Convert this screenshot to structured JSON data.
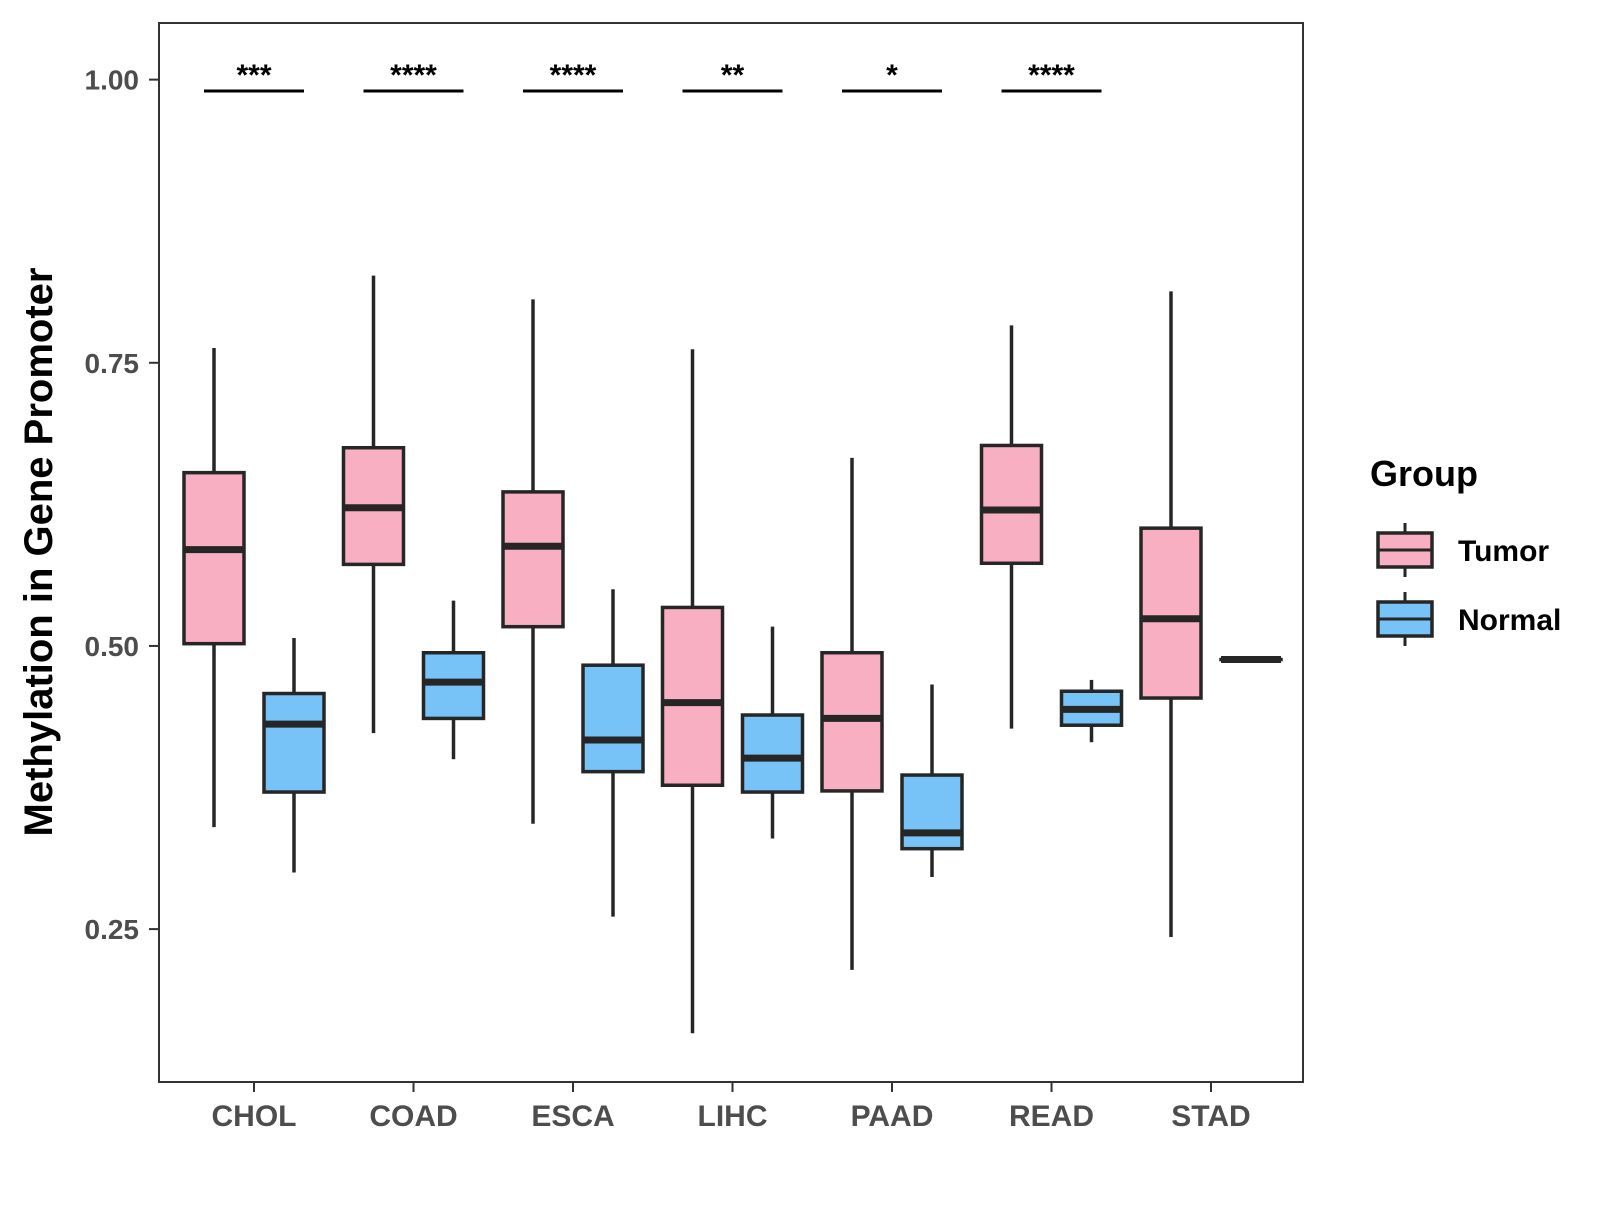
{
  "chart_data": {
    "type": "boxplot",
    "title": "",
    "xlabel": "",
    "ylabel": "Methylation in Gene Promoter",
    "ylim": [
      0.115,
      1.05
    ],
    "yticks": [
      0.25,
      0.5,
      0.75,
      1.0
    ],
    "ytick_labels": [
      "0.25",
      "0.50",
      "0.75",
      "1.00"
    ],
    "categories": [
      "CHOL",
      "COAD",
      "ESCA",
      "LIHC",
      "PAAD",
      "READ",
      "STAD"
    ],
    "series": [
      {
        "name": "Tumor",
        "color": "#F9AFC2",
        "boxes": [
          {
            "min": 0.34,
            "q1": 0.502,
            "median": 0.585,
            "q3": 0.653,
            "max": 0.763
          },
          {
            "min": 0.423,
            "q1": 0.572,
            "median": 0.622,
            "q3": 0.675,
            "max": 0.827
          },
          {
            "min": 0.343,
            "q1": 0.517,
            "median": 0.588,
            "q3": 0.636,
            "max": 0.806
          },
          {
            "min": 0.158,
            "q1": 0.377,
            "median": 0.45,
            "q3": 0.534,
            "max": 0.762
          },
          {
            "min": 0.214,
            "q1": 0.372,
            "median": 0.436,
            "q3": 0.494,
            "max": 0.666
          },
          {
            "min": 0.427,
            "q1": 0.573,
            "median": 0.62,
            "q3": 0.677,
            "max": 0.783
          },
          {
            "min": 0.243,
            "q1": 0.454,
            "median": 0.524,
            "q3": 0.604,
            "max": 0.813
          }
        ]
      },
      {
        "name": "Normal",
        "color": "#77C2F6",
        "boxes": [
          {
            "min": 0.3,
            "q1": 0.371,
            "median": 0.431,
            "q3": 0.458,
            "max": 0.507
          },
          {
            "min": 0.4,
            "q1": 0.436,
            "median": 0.468,
            "q3": 0.494,
            "max": 0.54
          },
          {
            "min": 0.261,
            "q1": 0.389,
            "median": 0.417,
            "q3": 0.483,
            "max": 0.55
          },
          {
            "min": 0.33,
            "q1": 0.371,
            "median": 0.401,
            "q3": 0.439,
            "max": 0.517
          },
          {
            "min": 0.296,
            "q1": 0.321,
            "median": 0.335,
            "q3": 0.386,
            "max": 0.466
          },
          {
            "min": 0.415,
            "q1": 0.43,
            "median": 0.444,
            "q3": 0.46,
            "max": 0.47
          },
          {
            "min": 0.488,
            "q1": 0.488,
            "median": 0.488,
            "q3": 0.488,
            "max": 0.488
          }
        ]
      }
    ],
    "significance": [
      {
        "category": "CHOL",
        "label": "***",
        "y": 0.99
      },
      {
        "category": "COAD",
        "label": "****",
        "y": 0.99
      },
      {
        "category": "ESCA",
        "label": "****",
        "y": 0.99
      },
      {
        "category": "LIHC",
        "label": "**",
        "y": 0.99
      },
      {
        "category": "PAAD",
        "label": "*",
        "y": 0.99
      },
      {
        "category": "READ",
        "label": "****",
        "y": 0.99
      }
    ],
    "legend": {
      "title": "Group",
      "position": "right",
      "entries": [
        "Tumor",
        "Normal"
      ]
    },
    "grid": false
  }
}
